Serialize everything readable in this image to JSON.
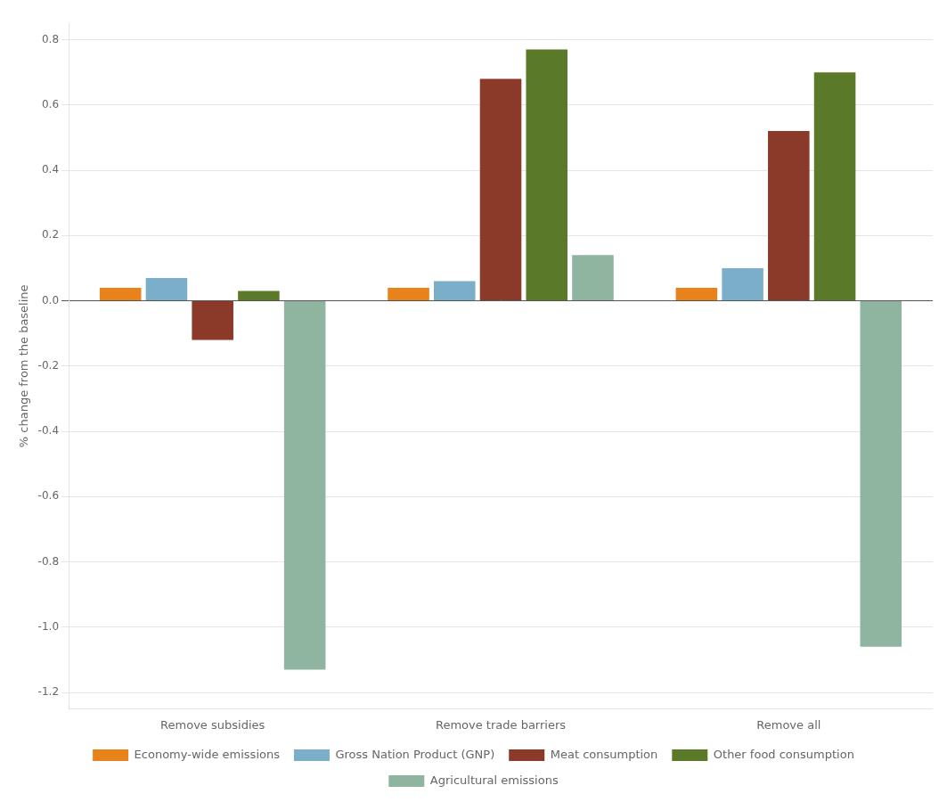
{
  "chart_data": {
    "type": "bar",
    "categories": [
      "Remove subsidies",
      "Remove trade barriers",
      "Remove all"
    ],
    "series": [
      {
        "name": "Economy-wide emissions",
        "color": "#E8821A",
        "values": [
          0.04,
          0.04,
          0.04
        ]
      },
      {
        "name": "Gross Nation Product (GNP)",
        "color": "#7BAEC8",
        "values": [
          0.07,
          0.06,
          0.1
        ]
      },
      {
        "name": "Meat consumption",
        "color": "#8B3A2A",
        "values": [
          -0.12,
          0.68,
          0.52
        ]
      },
      {
        "name": "Other food consumption",
        "color": "#5A7A2A",
        "values": [
          0.03,
          0.77,
          0.7
        ]
      },
      {
        "name": "Agricultural emissions",
        "color": "#8FB5A0",
        "values": [
          -1.13,
          0.14,
          -1.06
        ]
      }
    ],
    "ylabel": "% change from the baseline",
    "ylim": [
      -1.25,
      0.85
    ],
    "yticks": [
      -1.2,
      {
        "value": -1.0,
        "label": "-1.0"
      },
      -0.8,
      -0.6,
      -0.4,
      -0.2,
      {
        "value": 0.0,
        "label": "0.0"
      },
      0.2,
      0.4,
      0.6,
      0.8
    ],
    "grid": true,
    "legend": "bottom"
  }
}
